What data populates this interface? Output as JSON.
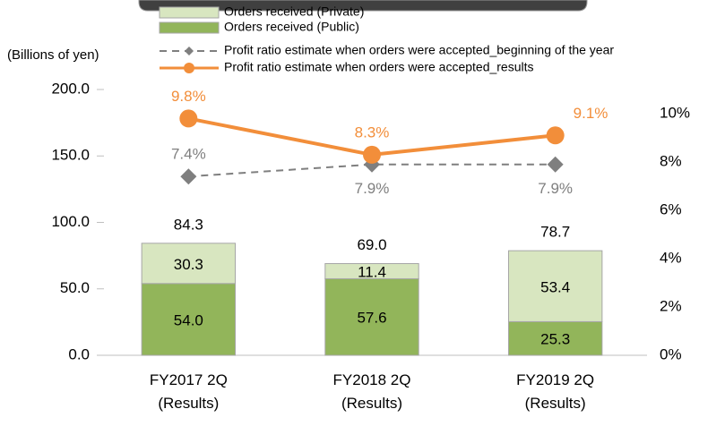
{
  "chart_data": {
    "type": "bar_line",
    "y_axis_label": "(Billions of yen)",
    "categories": [
      "FY2017 2Q\n(Results)",
      "FY2018 2Q\n(Results)",
      "FY2019 2Q\n(Results)"
    ],
    "series": [
      {
        "name": "Orders received (Private)",
        "type": "bar",
        "color": "#d8e6c0",
        "values": [
          30.3,
          11.4,
          53.4
        ],
        "value_labels": [
          "30.3",
          "11.4",
          "53.4"
        ]
      },
      {
        "name": "Orders received (Public)",
        "type": "bar",
        "color": "#92b55a",
        "values": [
          54.0,
          57.6,
          25.3
        ],
        "value_labels": [
          "54.0",
          "57.6",
          "25.3"
        ]
      },
      {
        "name": "Profit ratio estimate when orders were accepted_beginning of the year",
        "type": "line",
        "axis": "y2",
        "color": "#7f7f7f",
        "dashed": true,
        "marker": "diamond",
        "values": [
          7.4,
          7.9,
          7.9
        ],
        "value_labels": [
          "7.4%",
          "7.9%",
          "7.9%"
        ]
      },
      {
        "name": "Profit ratio estimate when orders were accepted_results",
        "type": "line",
        "axis": "y2",
        "color": "#f28e3a",
        "marker": "circle",
        "values": [
          9.8,
          8.3,
          9.1
        ],
        "value_labels": [
          "9.8%",
          "8.3%",
          "9.1%"
        ]
      }
    ],
    "totals": [
      84.3,
      69.0,
      78.7
    ],
    "total_labels": [
      "84.3",
      "69.0",
      "78.7"
    ],
    "ylim": [
      0,
      200
    ],
    "yticks": [
      {
        "value": 0,
        "label": "0.0"
      },
      {
        "value": 50,
        "label": "50.0"
      },
      {
        "value": 100,
        "label": "100.0"
      },
      {
        "value": 150,
        "label": "150.0"
      },
      {
        "value": 200,
        "label": "200.0"
      }
    ],
    "y2lim": [
      0,
      11
    ],
    "y2ticks": [
      {
        "value": 0,
        "label": "0%"
      },
      {
        "value": 2,
        "label": "2%"
      },
      {
        "value": 4,
        "label": "4%"
      },
      {
        "value": 6,
        "label": "6%"
      },
      {
        "value": 8,
        "label": "8%"
      },
      {
        "value": 10,
        "label": "10%"
      }
    ]
  }
}
